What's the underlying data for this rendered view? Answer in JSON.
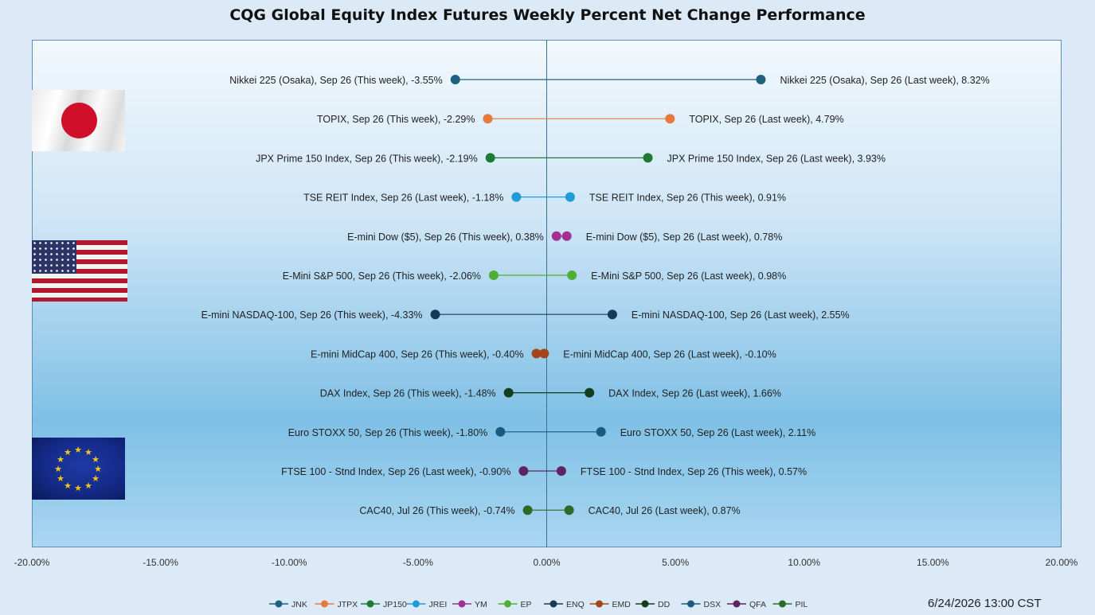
{
  "title": "CQG Global Equity Index Futures Weekly Percent Net Change Performance",
  "timestamp": "6/24/2026 13:00 CST",
  "chart_data": {
    "type": "dumbbell",
    "x_axis": {
      "min": -20,
      "max": 20,
      "step": 5,
      "tick_labels": [
        "-20.00%",
        "-15.00%",
        "-10.00%",
        "-5.00%",
        "0.00%",
        "5.00%",
        "10.00%",
        "15.00%",
        "20.00%"
      ]
    },
    "rows": [
      {
        "symbol": "JNK",
        "color": "#1f5f80",
        "left_label": "Nikkei 225 (Osaka), Sep 26 (This week), -3.55%",
        "right_label": "Nikkei 225 (Osaka), Sep 26 (Last week), 8.32%",
        "left_value": -3.55,
        "right_value": 8.32
      },
      {
        "symbol": "JTPX",
        "color": "#e8793d",
        "left_label": "TOPIX, Sep 26 (This week), -2.29%",
        "right_label": "TOPIX, Sep 26 (Last week), 4.79%",
        "left_value": -2.29,
        "right_value": 4.79
      },
      {
        "symbol": "JP150",
        "color": "#1e7b34",
        "left_label": "JPX Prime 150 Index, Sep 26 (This week), -2.19%",
        "right_label": "JPX Prime 150 Index, Sep 26 (Last week), 3.93%",
        "left_value": -2.19,
        "right_value": 3.93
      },
      {
        "symbol": "JREI",
        "color": "#1f9bd6",
        "left_label": "TSE REIT Index, Sep 26 (Last week), -1.18%",
        "right_label": "TSE REIT Index, Sep 26 (This week), 0.91%",
        "left_value": -1.18,
        "right_value": 0.91
      },
      {
        "symbol": "YM",
        "color": "#a2308f",
        "left_label": "E-mini Dow ($5), Sep 26 (This week), 0.38%",
        "right_label": "E-mini Dow ($5), Sep 26 (Last week), 0.78%",
        "left_value": 0.38,
        "right_value": 0.78
      },
      {
        "symbol": "EP",
        "color": "#4fae35",
        "left_label": "E-Mini S&P 500, Sep 26 (This week), -2.06%",
        "right_label": "E-Mini S&P 500, Sep 26 (Last week), 0.98%",
        "left_value": -2.06,
        "right_value": 0.98
      },
      {
        "symbol": "ENQ",
        "color": "#173b57",
        "left_label": "E-mini NASDAQ-100, Sep 26 (This week), -4.33%",
        "right_label": "E-mini NASDAQ-100, Sep 26 (Last week), 2.55%",
        "left_value": -4.33,
        "right_value": 2.55
      },
      {
        "symbol": "EMD",
        "color": "#a3461c",
        "left_label": "E-mini MidCap 400, Sep 26 (This week), -0.40%",
        "right_label": "E-mini MidCap 400, Sep 26 (Last week), -0.10%",
        "left_value": -0.4,
        "right_value": -0.1
      },
      {
        "symbol": "DD",
        "color": "#133d1f",
        "left_label": "DAX Index, Sep 26 (This week), -1.48%",
        "right_label": "DAX Index, Sep 26 (Last week), 1.66%",
        "left_value": -1.48,
        "right_value": 1.66
      },
      {
        "symbol": "DSX",
        "color": "#1b5a7c",
        "left_label": "Euro STOXX 50, Sep 26 (This week), -1.80%",
        "right_label": "Euro STOXX 50, Sep 26 (Last week), 2.11%",
        "left_value": -1.8,
        "right_value": 2.11
      },
      {
        "symbol": "QFA",
        "color": "#5e2460",
        "left_label": "FTSE 100 - Stnd Index, Sep 26 (Last week), -0.90%",
        "right_label": "FTSE 100 - Stnd Index, Sep 26 (This week), 0.57%",
        "left_value": -0.9,
        "right_value": 0.57
      },
      {
        "symbol": "PIL",
        "color": "#2e6a25",
        "left_label": "CAC40, Jul 26 (This week), -0.74%",
        "right_label": "CAC40, Jul 26 (Last week), 0.87%",
        "left_value": -0.74,
        "right_value": 0.87
      }
    ],
    "legend": {
      "placement": "bottom",
      "entries": [
        "JNK",
        "JTPX",
        "JP150",
        "JREI",
        "YM",
        "EP",
        "ENQ",
        "EMD",
        "DD",
        "DSX",
        "QFA",
        "PIL"
      ]
    },
    "grid": false,
    "zero_line": true
  }
}
